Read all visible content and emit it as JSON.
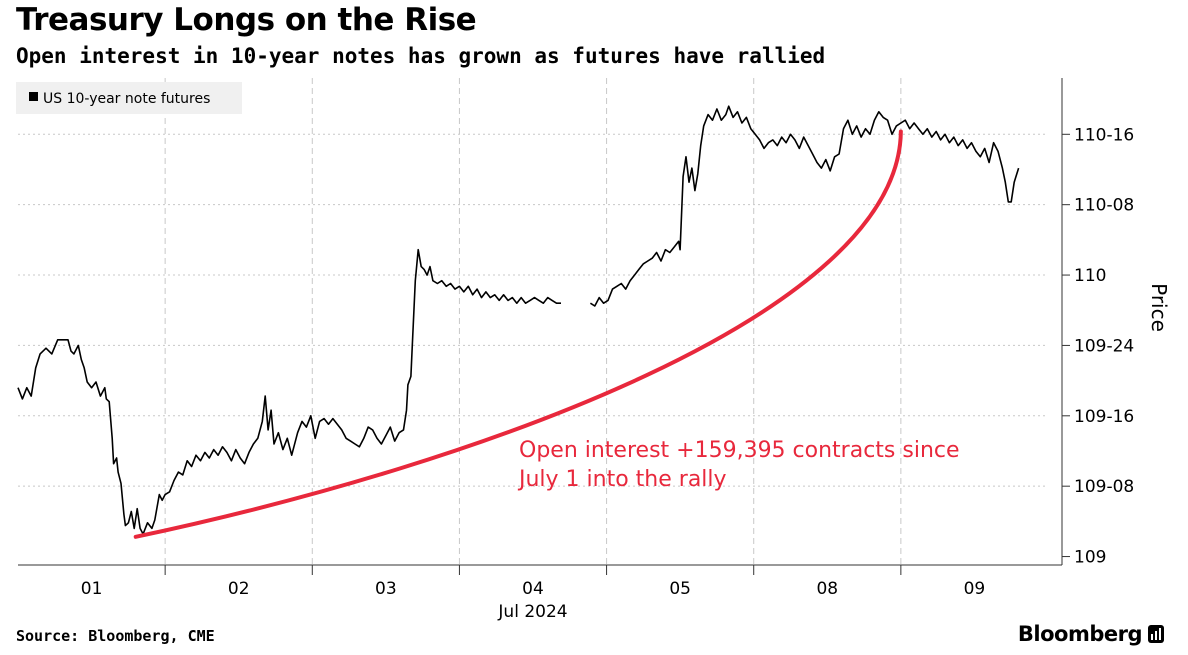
{
  "chart_data": {
    "type": "line",
    "title": "Treasury Longs on the Rise",
    "subtitle": "Open interest in 10-year notes has grown as futures have rallied",
    "legend": [
      {
        "label": "US 10-year note futures",
        "color": "#000000"
      }
    ],
    "ylabel": "Price",
    "ylim": [
      108.97,
      110.7
    ],
    "y_ticks": [
      {
        "value": 109.0,
        "label": "109"
      },
      {
        "value": 109.25,
        "label": "109-08"
      },
      {
        "value": 109.5,
        "label": "109-16"
      },
      {
        "value": 109.75,
        "label": "109-24"
      },
      {
        "value": 110.0,
        "label": "110"
      },
      {
        "value": 110.25,
        "label": "110-08"
      },
      {
        "value": 110.5,
        "label": "110-16"
      }
    ],
    "x_ticks": [
      {
        "value": 0.5,
        "label": "01"
      },
      {
        "value": 1.5,
        "label": "02"
      },
      {
        "value": 2.5,
        "label": "03"
      },
      {
        "value": 3.5,
        "label": "04"
      },
      {
        "value": 4.5,
        "label": "05"
      },
      {
        "value": 5.5,
        "label": "08"
      },
      {
        "value": 6.5,
        "label": "09"
      }
    ],
    "x_sublabel": "Jul 2024",
    "xlim": [
      0,
      7
    ],
    "day_boundaries": [
      1,
      2,
      3,
      4,
      5,
      6
    ],
    "series": [
      {
        "name": "US 10-year note futures",
        "color": "#000000",
        "segments": [
          [
            [
              0.0,
              109.6
            ],
            [
              0.03,
              109.56
            ],
            [
              0.06,
              109.6
            ],
            [
              0.09,
              109.57
            ],
            [
              0.12,
              109.67
            ],
            [
              0.15,
              109.72
            ],
            [
              0.19,
              109.74
            ],
            [
              0.23,
              109.72
            ],
            [
              0.27,
              109.77
            ],
            [
              0.31,
              109.77
            ],
            [
              0.34,
              109.77
            ],
            [
              0.36,
              109.73
            ],
            [
              0.38,
              109.72
            ],
            [
              0.41,
              109.75
            ],
            [
              0.43,
              109.7
            ],
            [
              0.45,
              109.67
            ],
            [
              0.47,
              109.62
            ],
            [
              0.5,
              109.6
            ],
            [
              0.53,
              109.62
            ],
            [
              0.56,
              109.57
            ],
            [
              0.59,
              109.6
            ],
            [
              0.6,
              109.56
            ],
            [
              0.62,
              109.55
            ],
            [
              0.64,
              109.42
            ],
            [
              0.65,
              109.33
            ],
            [
              0.67,
              109.35
            ],
            [
              0.68,
              109.3
            ],
            [
              0.7,
              109.26
            ],
            [
              0.72,
              109.15
            ],
            [
              0.73,
              109.11
            ],
            [
              0.75,
              109.12
            ],
            [
              0.77,
              109.16
            ],
            [
              0.79,
              109.1
            ],
            [
              0.81,
              109.17
            ],
            [
              0.83,
              109.1
            ],
            [
              0.85,
              109.08
            ],
            [
              0.88,
              109.12
            ],
            [
              0.91,
              109.1
            ],
            [
              0.93,
              109.13
            ],
            [
              0.96,
              109.22
            ],
            [
              0.98,
              109.2
            ],
            [
              1.0,
              109.22
            ],
            [
              1.03,
              109.23
            ],
            [
              1.06,
              109.27
            ],
            [
              1.09,
              109.3
            ],
            [
              1.12,
              109.29
            ],
            [
              1.15,
              109.34
            ],
            [
              1.18,
              109.32
            ],
            [
              1.21,
              109.36
            ],
            [
              1.24,
              109.34
            ],
            [
              1.27,
              109.37
            ],
            [
              1.3,
              109.35
            ],
            [
              1.33,
              109.38
            ],
            [
              1.36,
              109.36
            ],
            [
              1.39,
              109.39
            ],
            [
              1.42,
              109.37
            ],
            [
              1.45,
              109.34
            ],
            [
              1.48,
              109.38
            ],
            [
              1.51,
              109.35
            ],
            [
              1.54,
              109.33
            ],
            [
              1.57,
              109.37
            ],
            [
              1.6,
              109.4
            ],
            [
              1.63,
              109.42
            ],
            [
              1.66,
              109.48
            ],
            [
              1.68,
              109.57
            ],
            [
              1.7,
              109.45
            ],
            [
              1.72,
              109.52
            ],
            [
              1.74,
              109.4
            ],
            [
              1.77,
              109.44
            ],
            [
              1.8,
              109.38
            ],
            [
              1.83,
              109.42
            ],
            [
              1.86,
              109.36
            ],
            [
              1.9,
              109.44
            ],
            [
              1.93,
              109.48
            ],
            [
              1.96,
              109.46
            ],
            [
              1.99,
              109.5
            ],
            [
              2.02,
              109.42
            ],
            [
              2.05,
              109.48
            ],
            [
              2.08,
              109.49
            ],
            [
              2.11,
              109.47
            ],
            [
              2.14,
              109.49
            ],
            [
              2.17,
              109.47
            ],
            [
              2.2,
              109.45
            ],
            [
              2.23,
              109.42
            ],
            [
              2.26,
              109.41
            ],
            [
              2.29,
              109.4
            ],
            [
              2.32,
              109.39
            ],
            [
              2.35,
              109.42
            ],
            [
              2.38,
              109.46
            ],
            [
              2.41,
              109.45
            ],
            [
              2.44,
              109.42
            ],
            [
              2.47,
              109.4
            ],
            [
              2.5,
              109.43
            ],
            [
              2.53,
              109.46
            ],
            [
              2.56,
              109.41
            ],
            [
              2.59,
              109.44
            ],
            [
              2.62,
              109.45
            ],
            [
              2.64,
              109.52
            ],
            [
              2.65,
              109.61
            ],
            [
              2.67,
              109.64
            ],
            [
              2.68,
              109.75
            ],
            [
              2.7,
              109.98
            ],
            [
              2.72,
              110.09
            ],
            [
              2.74,
              110.03
            ],
            [
              2.76,
              110.02
            ],
            [
              2.78,
              110.0
            ],
            [
              2.8,
              110.03
            ],
            [
              2.82,
              109.98
            ],
            [
              2.85,
              109.97
            ],
            [
              2.88,
              109.98
            ],
            [
              2.91,
              109.96
            ],
            [
              2.94,
              109.97
            ],
            [
              2.97,
              109.95
            ],
            [
              3.0,
              109.96
            ],
            [
              3.03,
              109.94
            ],
            [
              3.06,
              109.96
            ],
            [
              3.09,
              109.93
            ],
            [
              3.12,
              109.95
            ],
            [
              3.15,
              109.92
            ],
            [
              3.18,
              109.94
            ],
            [
              3.21,
              109.92
            ],
            [
              3.24,
              109.93
            ],
            [
              3.27,
              109.91
            ],
            [
              3.3,
              109.93
            ],
            [
              3.33,
              109.91
            ],
            [
              3.36,
              109.92
            ],
            [
              3.39,
              109.9
            ],
            [
              3.42,
              109.92
            ],
            [
              3.45,
              109.9
            ],
            [
              3.48,
              109.91
            ],
            [
              3.51,
              109.92
            ],
            [
              3.54,
              109.91
            ],
            [
              3.57,
              109.9
            ],
            [
              3.6,
              109.92
            ],
            [
              3.63,
              109.91
            ],
            [
              3.66,
              109.9
            ],
            [
              3.69,
              109.9
            ]
          ],
          [
            [
              3.89,
              109.9
            ],
            [
              3.92,
              109.89
            ],
            [
              3.95,
              109.92
            ],
            [
              3.98,
              109.9
            ],
            [
              4.01,
              109.91
            ],
            [
              4.04,
              109.95
            ],
            [
              4.07,
              109.96
            ],
            [
              4.1,
              109.97
            ],
            [
              4.13,
              109.95
            ],
            [
              4.16,
              109.98
            ],
            [
              4.19,
              110.0
            ],
            [
              4.22,
              110.02
            ],
            [
              4.25,
              110.04
            ],
            [
              4.28,
              110.05
            ],
            [
              4.31,
              110.06
            ],
            [
              4.34,
              110.08
            ],
            [
              4.37,
              110.05
            ],
            [
              4.4,
              110.09
            ],
            [
              4.43,
              110.08
            ],
            [
              4.46,
              110.1
            ],
            [
              4.49,
              110.12
            ],
            [
              4.5,
              110.09
            ],
            [
              4.52,
              110.35
            ],
            [
              4.54,
              110.42
            ],
            [
              4.56,
              110.33
            ],
            [
              4.58,
              110.38
            ],
            [
              4.6,
              110.3
            ],
            [
              4.62,
              110.36
            ],
            [
              4.64,
              110.46
            ],
            [
              4.66,
              110.53
            ],
            [
              4.69,
              110.57
            ],
            [
              4.72,
              110.55
            ],
            [
              4.75,
              110.59
            ],
            [
              4.78,
              110.55
            ],
            [
              4.81,
              110.57
            ],
            [
              4.83,
              110.6
            ],
            [
              4.86,
              110.56
            ],
            [
              4.89,
              110.58
            ],
            [
              4.92,
              110.54
            ],
            [
              4.95,
              110.56
            ],
            [
              4.98,
              110.52
            ],
            [
              5.01,
              110.5
            ],
            [
              5.04,
              110.48
            ],
            [
              5.07,
              110.45
            ],
            [
              5.1,
              110.47
            ],
            [
              5.13,
              110.48
            ],
            [
              5.16,
              110.46
            ],
            [
              5.19,
              110.49
            ],
            [
              5.22,
              110.47
            ],
            [
              5.25,
              110.5
            ],
            [
              5.28,
              110.48
            ],
            [
              5.31,
              110.45
            ],
            [
              5.34,
              110.49
            ],
            [
              5.37,
              110.46
            ],
            [
              5.4,
              110.43
            ],
            [
              5.43,
              110.4
            ],
            [
              5.46,
              110.38
            ],
            [
              5.49,
              110.41
            ],
            [
              5.52,
              110.37
            ],
            [
              5.55,
              110.42
            ],
            [
              5.58,
              110.43
            ],
            [
              5.61,
              110.52
            ],
            [
              5.64,
              110.55
            ],
            [
              5.67,
              110.5
            ],
            [
              5.7,
              110.53
            ],
            [
              5.73,
              110.49
            ],
            [
              5.76,
              110.52
            ],
            [
              5.79,
              110.5
            ],
            [
              5.82,
              110.55
            ],
            [
              5.85,
              110.58
            ],
            [
              5.88,
              110.56
            ],
            [
              5.91,
              110.55
            ],
            [
              5.94,
              110.5
            ],
            [
              5.97,
              110.53
            ],
            [
              6.0,
              110.54
            ],
            [
              6.03,
              110.55
            ],
            [
              6.06,
              110.52
            ],
            [
              6.09,
              110.54
            ],
            [
              6.12,
              110.52
            ],
            [
              6.15,
              110.5
            ],
            [
              6.18,
              110.52
            ],
            [
              6.21,
              110.49
            ],
            [
              6.24,
              110.51
            ],
            [
              6.27,
              110.48
            ],
            [
              6.3,
              110.5
            ],
            [
              6.33,
              110.47
            ],
            [
              6.36,
              110.49
            ],
            [
              6.39,
              110.46
            ],
            [
              6.42,
              110.48
            ],
            [
              6.45,
              110.45
            ],
            [
              6.48,
              110.47
            ],
            [
              6.51,
              110.44
            ],
            [
              6.54,
              110.42
            ],
            [
              6.57,
              110.45
            ],
            [
              6.6,
              110.4
            ],
            [
              6.63,
              110.47
            ],
            [
              6.66,
              110.44
            ],
            [
              6.69,
              110.38
            ],
            [
              6.71,
              110.33
            ],
            [
              6.73,
              110.26
            ],
            [
              6.75,
              110.26
            ],
            [
              6.77,
              110.33
            ],
            [
              6.8,
              110.38
            ]
          ]
        ]
      }
    ],
    "annotation": {
      "text_lines": [
        "Open interest +159,395 contracts since",
        "July 1 into the rally"
      ],
      "color": "#e8283c",
      "curve": {
        "start": [
          0.8,
          109.07
        ],
        "end": [
          6.0,
          110.51
        ]
      }
    }
  },
  "footer": {
    "source": "Source: Bloomberg, CME",
    "brand": "Bloomberg"
  }
}
